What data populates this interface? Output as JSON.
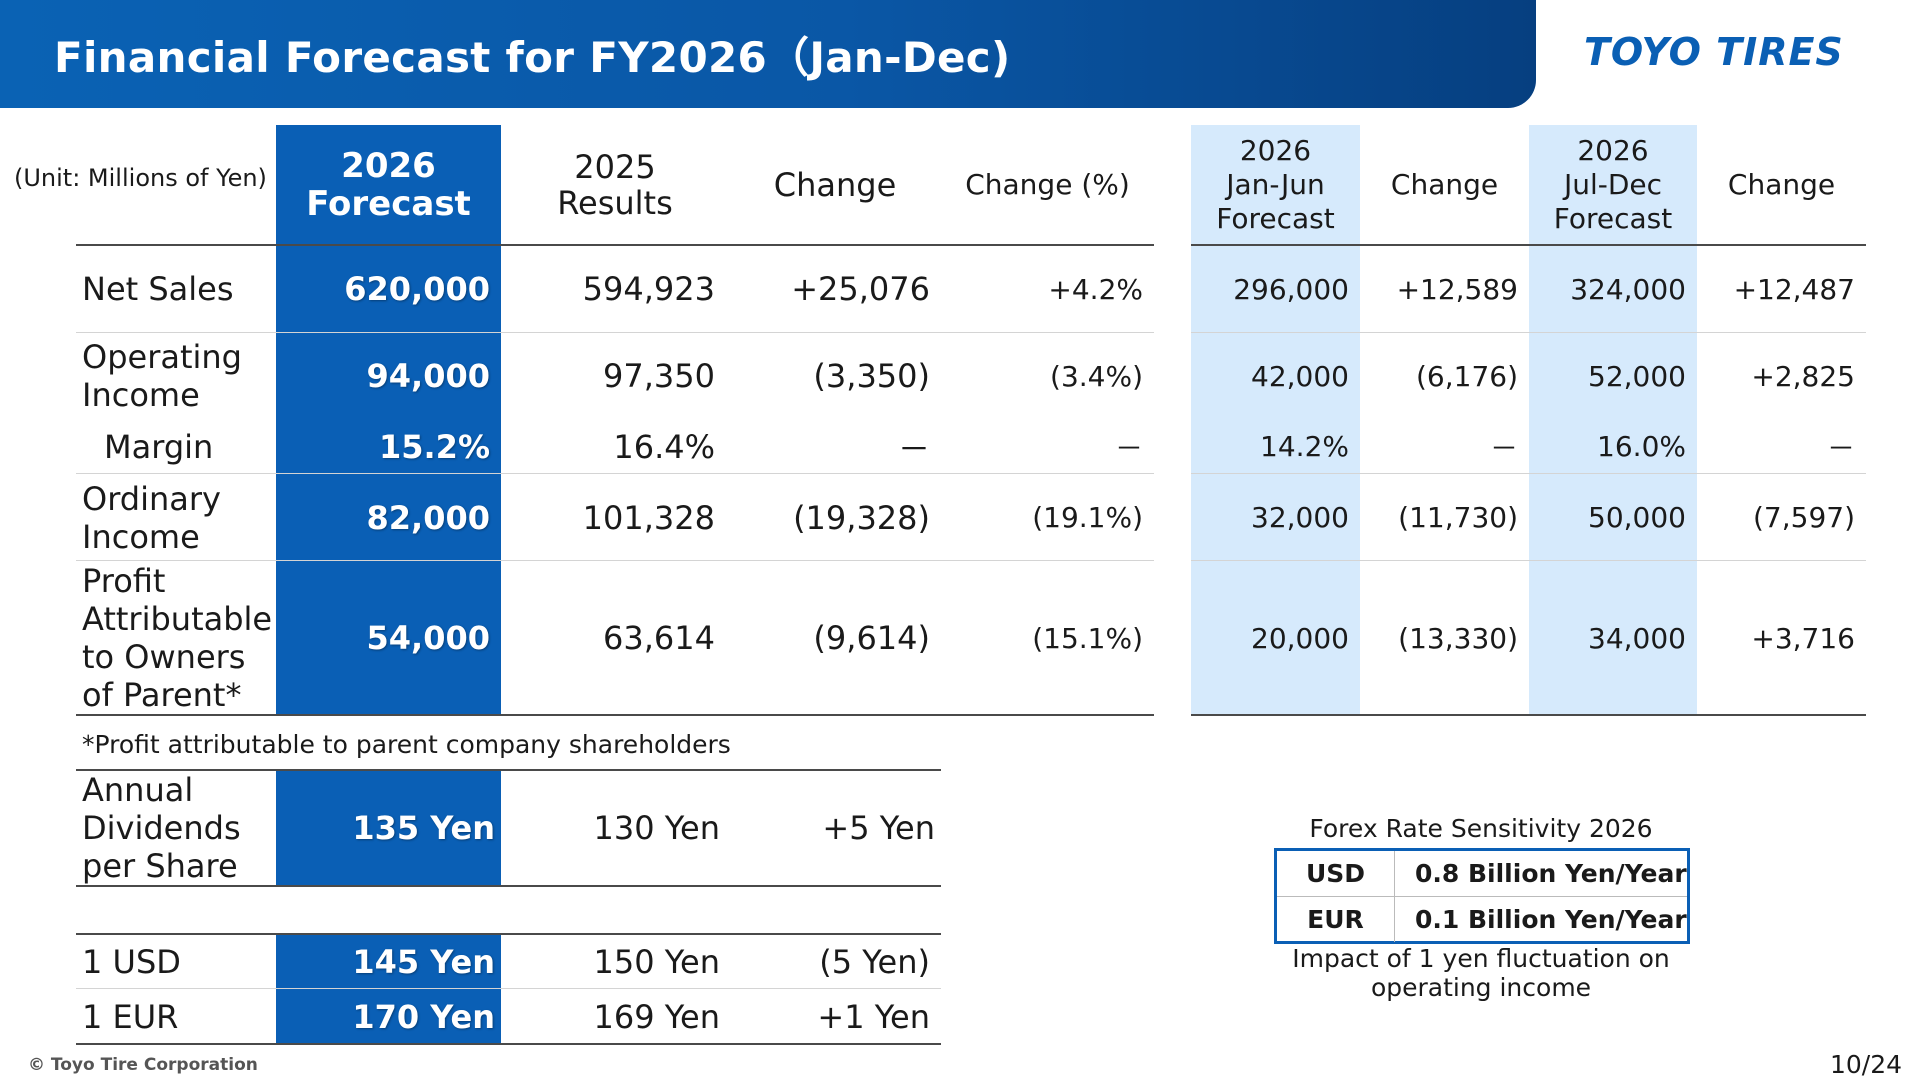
{
  "header": {
    "title": "Financial Forecast for FY2026（Jan-Dec)",
    "logo": "TOYO TIRES"
  },
  "unit": "(Unit: Millions of Yen)",
  "columns": {
    "forecast": [
      "2026",
      "Forecast"
    ],
    "results": [
      "2025",
      "Results"
    ],
    "change": "Change",
    "change_pct": "Change (%)",
    "h1": [
      "2026",
      "Jan-Jun",
      "Forecast"
    ],
    "h1_change": "Change",
    "h2": [
      "2026",
      "Jul-Dec",
      "Forecast"
    ],
    "h2_change": "Change"
  },
  "rows": [
    {
      "label": "Net Sales",
      "forecast": "620,000",
      "results": "594,923",
      "change": "+25,076",
      "change_pct": "+4.2%",
      "h1": "296,000",
      "h1_change": "+12,589",
      "h2": "324,000",
      "h2_change": "+12,487"
    },
    {
      "label": "Operating Income",
      "forecast": "94,000",
      "results": "97,350",
      "change": "(3,350)",
      "change_pct": "(3.4%)",
      "h1": "42,000",
      "h1_change": "(6,176)",
      "h2": "52,000",
      "h2_change": "+2,825"
    },
    {
      "label": "Margin",
      "forecast": "15.2%",
      "results": "16.4%",
      "change": "－",
      "change_pct": "－",
      "h1": "14.2%",
      "h1_change": "－",
      "h2": "16.0%",
      "h2_change": "－"
    },
    {
      "label": "Ordinary Income",
      "forecast": "82,000",
      "results": "101,328",
      "change": "(19,328)",
      "change_pct": "(19.1%)",
      "h1": "32,000",
      "h1_change": "(11,730)",
      "h2": "50,000",
      "h2_change": "(7,597)"
    },
    {
      "label": "Profit Attributable to Owners of Parent*",
      "forecast": "54,000",
      "results": "63,614",
      "change": "(9,614)",
      "change_pct": "(15.1%)",
      "h1": "20,000",
      "h1_change": "(13,330)",
      "h2": "34,000",
      "h2_change": "+3,716"
    }
  ],
  "footnote": "*Profit attributable to parent company shareholders",
  "dividends": {
    "label": "Annual Dividends per Share",
    "forecast": "135 Yen",
    "results": "130 Yen",
    "change": "+5 Yen"
  },
  "fx": [
    {
      "label": "1 USD",
      "forecast": "145 Yen",
      "results": "150 Yen",
      "change": "(5 Yen)"
    },
    {
      "label": "1 EUR",
      "forecast": "170 Yen",
      "results": "169 Yen",
      "change": "+1 Yen"
    }
  ],
  "sensitivity": {
    "title": "Forex Rate Sensitivity 2026",
    "rows": [
      {
        "currency": "USD",
        "value": "0.8 Billion Yen/Year"
      },
      {
        "currency": "EUR",
        "value": "0.1 Billion Yen/Year"
      }
    ],
    "note": "Impact of 1 yen fluctuation on operating income"
  },
  "footer": {
    "copyright": "© Toyo Tire Corporation",
    "page": "10/24"
  },
  "colors": {
    "brand_blue": "#0a5fb5",
    "light_blue": "#d6eafc"
  }
}
